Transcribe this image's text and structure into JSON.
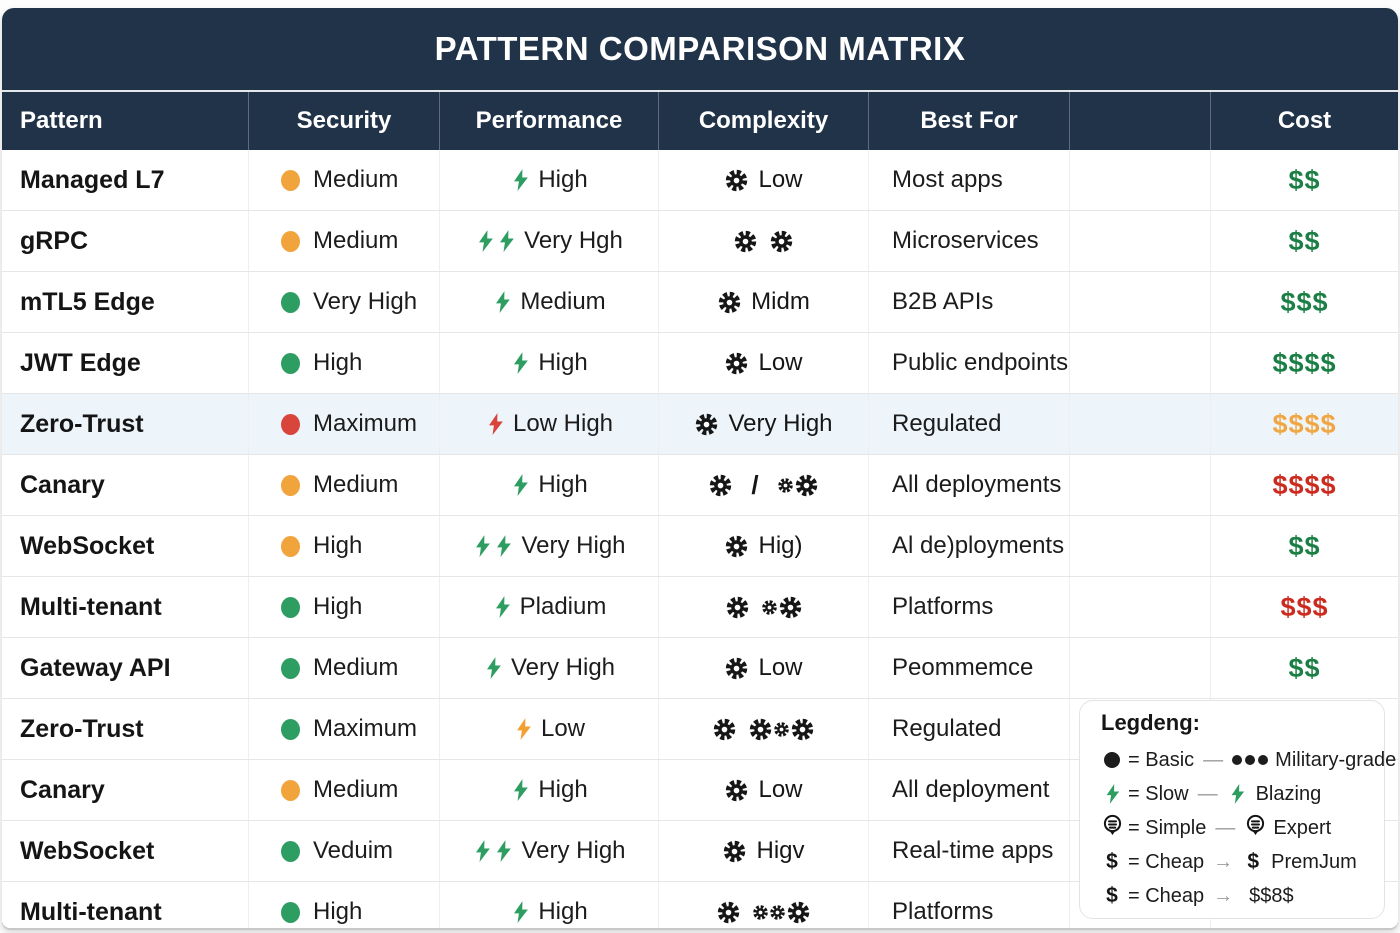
{
  "title": "PATTERN COMPARISON MATRIX",
  "colors": {
    "header_bg": "#213349",
    "row_highlight": "#edf4fa",
    "green": "#2e9d62",
    "orange": "#f1a33c",
    "red": "#d8453a",
    "cost_green": "#1b7f45",
    "cost_orange": "#f0a643",
    "cost_red": "#cc2a1e"
  },
  "columns": [
    {
      "key": "pattern",
      "label": "Pattern"
    },
    {
      "key": "security",
      "label": "Security"
    },
    {
      "key": "performance",
      "label": "Performance"
    },
    {
      "key": "complexity",
      "label": "Complexity"
    },
    {
      "key": "best_for",
      "label": "Best For"
    },
    {
      "key": "spacer",
      "label": ""
    },
    {
      "key": "cost",
      "label": "Cost"
    }
  ],
  "rows": [
    {
      "pattern": "Managed L7",
      "security": {
        "dot": "orange",
        "label": "Medium"
      },
      "performance": {
        "bolts": 1,
        "color": "green",
        "label": "High"
      },
      "complexity": {
        "icons": "G",
        "label": "Low"
      },
      "best_for": "Most apps",
      "cost": {
        "text": "$$",
        "color": "green"
      },
      "highlight": false
    },
    {
      "pattern": "gRPC",
      "security": {
        "dot": "orange",
        "label": "Medium"
      },
      "performance": {
        "bolts": 2,
        "color": "green",
        "label": "Very Hgh"
      },
      "complexity": {
        "icons": "G G",
        "label": ""
      },
      "best_for": "Microservices",
      "cost": {
        "text": "$$",
        "color": "green"
      },
      "highlight": false
    },
    {
      "pattern": "mTL5 Edge",
      "security": {
        "dot": "green",
        "label": "Very High"
      },
      "performance": {
        "bolts": 1,
        "color": "green",
        "label": "Medium"
      },
      "complexity": {
        "icons": "G",
        "label": "Midm"
      },
      "best_for": "B2B APIs",
      "cost": {
        "text": "$$$",
        "color": "green"
      },
      "highlight": false
    },
    {
      "pattern": "JWT Edge",
      "security": {
        "dot": "green",
        "label": "High"
      },
      "performance": {
        "bolts": 1,
        "color": "green",
        "label": "High"
      },
      "complexity": {
        "icons": "G",
        "label": "Low"
      },
      "best_for": "Public endpoints",
      "cost": {
        "text": "$$$$",
        "color": "green"
      },
      "highlight": false
    },
    {
      "pattern": "Zero-Trust",
      "security": {
        "dot": "red",
        "label": "Maximum"
      },
      "performance": {
        "bolts": 1,
        "color": "red",
        "label": "Low High"
      },
      "complexity": {
        "icons": "G",
        "label": "Very High"
      },
      "best_for": "Regulated",
      "cost": {
        "text": "$$$$",
        "color": "orange"
      },
      "highlight": true
    },
    {
      "pattern": "Canary",
      "security": {
        "dot": "orange",
        "label": "Medium"
      },
      "performance": {
        "bolts": 1,
        "color": "green",
        "label": "High"
      },
      "complexity": {
        "icons": "G / gG",
        "label": ""
      },
      "best_for": "All deployments",
      "cost": {
        "text": "$$$$",
        "color": "red"
      },
      "highlight": false
    },
    {
      "pattern": "WebSocket",
      "security": {
        "dot": "orange",
        "label": "High"
      },
      "performance": {
        "bolts": 2,
        "color": "green",
        "label": "Very High"
      },
      "complexity": {
        "icons": "G",
        "label": "Hig)"
      },
      "best_for": "Al de)ployments",
      "cost": {
        "text": "$$",
        "color": "green"
      },
      "highlight": false
    },
    {
      "pattern": "Multi-tenant",
      "security": {
        "dot": "green",
        "label": "High"
      },
      "performance": {
        "bolts": 1,
        "color": "green",
        "label": "Pladium"
      },
      "complexity": {
        "icons": "G gG",
        "label": ""
      },
      "best_for": "Platforms",
      "cost": {
        "text": "$$$",
        "color": "red"
      },
      "highlight": false
    },
    {
      "pattern": "Gateway API",
      "security": {
        "dot": "green",
        "label": "Medium"
      },
      "performance": {
        "bolts": 1,
        "color": "green",
        "label": "Very High"
      },
      "complexity": {
        "icons": "G",
        "label": "Low"
      },
      "best_for": "Peommemce",
      "cost": {
        "text": "$$",
        "color": "green"
      },
      "highlight": false
    },
    {
      "pattern": "Zero-Trust",
      "security": {
        "dot": "green",
        "label": "Maximum"
      },
      "performance": {
        "bolts": 1,
        "color": "orange",
        "label": "Low"
      },
      "complexity": {
        "icons": "G GgG",
        "label": ""
      },
      "best_for": "Regulated",
      "cost": null,
      "highlight": false
    },
    {
      "pattern": "Canary",
      "security": {
        "dot": "orange",
        "label": "Medium"
      },
      "performance": {
        "bolts": 1,
        "color": "green",
        "label": "High"
      },
      "complexity": {
        "icons": "G",
        "label": "Low"
      },
      "best_for": "All deployment",
      "cost": null,
      "highlight": false
    },
    {
      "pattern": "WebSocket",
      "security": {
        "dot": "green",
        "label": "Veduim"
      },
      "performance": {
        "bolts": 2,
        "color": "green",
        "label": "Very High"
      },
      "complexity": {
        "icons": "G",
        "label": "Higv"
      },
      "best_for": "Real-time apps",
      "cost": null,
      "highlight": false
    },
    {
      "pattern": "Multi-tenant",
      "security": {
        "dot": "green",
        "label": "High"
      },
      "performance": {
        "bolts": 1,
        "color": "green",
        "label": "High"
      },
      "complexity": {
        "icons": "G ggG",
        "label": ""
      },
      "best_for": "Platforms",
      "cost": null,
      "highlight": false
    }
  ],
  "legend": {
    "title": "Legdeng:",
    "entries": [
      {
        "left_icon": "dot",
        "left_text": "= Basic",
        "dash": "—",
        "right_icon": "dot3",
        "right_text": "Military-grade"
      },
      {
        "left_icon": "bolt",
        "left_text": "= Slow",
        "dash": "—",
        "right_icon": "bolt",
        "right_text": "Blazing"
      },
      {
        "left_icon": "badge",
        "left_text": "= Simple",
        "dash": "—",
        "right_icon": "badge",
        "right_text": "Expert"
      },
      {
        "left_icon": "dollar",
        "left_text": "= Cheap",
        "dash": "→",
        "right_icon": "dollar",
        "right_text": "PremJum"
      },
      {
        "left_icon": "dollar",
        "left_text": "= Cheap",
        "dash": "→",
        "right_icon": "",
        "right_text": "$$8$"
      }
    ]
  },
  "chart_data": {
    "type": "table",
    "title": "PATTERN COMPARISON MATRIX",
    "columns": [
      "Pattern",
      "Security",
      "Performance",
      "Complexity",
      "Best For",
      "",
      "Cost"
    ],
    "rows": [
      [
        "Managed L7",
        "Medium (orange)",
        "High (1 bolt)",
        "Low (1 gear)",
        "Most apps",
        "",
        "$$ (green)"
      ],
      [
        "gRPC",
        "Medium (orange)",
        "Very Hgh (2 bolts)",
        "2 gears",
        "Microservices",
        "",
        "$$ (green)"
      ],
      [
        "mTL5 Edge",
        "Very High (green)",
        "Medium (1 bolt)",
        "Midm (1 gear)",
        "B2B APIs",
        "",
        "$$$ (green)"
      ],
      [
        "JWT Edge",
        "High (green)",
        "High (1 bolt)",
        "Low (1 gear)",
        "Public endpoints",
        "",
        "$$$$ (green)"
      ],
      [
        "Zero-Trust",
        "Maximum (red)",
        "Low High (1 red bolt)",
        "Very High (1 gear)",
        "Regulated",
        "",
        "$$$$ (orange)"
      ],
      [
        "Canary",
        "Medium (orange)",
        "High (1 bolt)",
        "1 gear / 2 gears",
        "All deployments",
        "",
        "$$$$ (red)"
      ],
      [
        "WebSocket",
        "High (orange)",
        "Very High (2 bolts)",
        "Hig) (1 gear)",
        "Al de)ployments",
        "",
        "$$ (green)"
      ],
      [
        "Multi-tenant",
        "High (green)",
        "Pladium (1 bolt)",
        "3 gears",
        "Platforms",
        "",
        "$$$ (red)"
      ],
      [
        "Gateway API",
        "Medium (green)",
        "Very High (1 bolt)",
        "Low (1 gear)",
        "Peommemce",
        "",
        "$$ (green)"
      ],
      [
        "Zero-Trust",
        "Maximum (green)",
        "Low (1 orange bolt)",
        "4 gears",
        "Regulated",
        "",
        ""
      ],
      [
        "Canary",
        "Medium (orange)",
        "High (1 bolt)",
        "Low (1 gear)",
        "All deployment",
        "",
        ""
      ],
      [
        "WebSocket",
        "Veduim (green)",
        "Very High (2 bolts)",
        "Higv (1 gear)",
        "Real-time apps",
        "",
        ""
      ],
      [
        "Multi-tenant",
        "High (green)",
        "High (1 bolt)",
        "4 gears",
        "Platforms",
        "",
        ""
      ]
    ]
  }
}
